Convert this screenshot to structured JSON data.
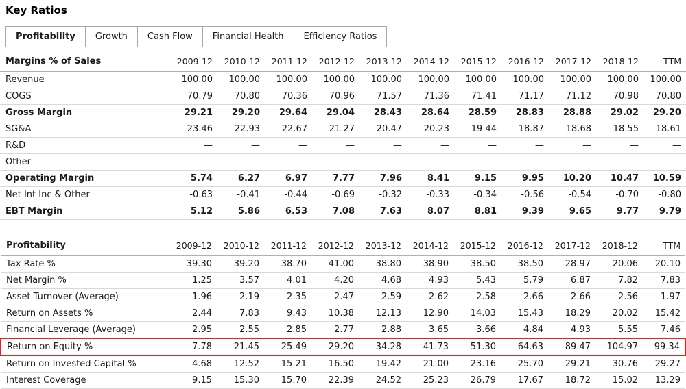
{
  "page": {
    "title": "Key Ratios"
  },
  "tabs": [
    {
      "label": "Profitability",
      "active": true
    },
    {
      "label": "Growth",
      "active": false
    },
    {
      "label": "Cash Flow",
      "active": false
    },
    {
      "label": "Financial Health",
      "active": false
    },
    {
      "label": "Efficiency Ratios",
      "active": false
    }
  ],
  "columns": [
    "2009-12",
    "2010-12",
    "2011-12",
    "2012-12",
    "2013-12",
    "2014-12",
    "2015-12",
    "2016-12",
    "2017-12",
    "2018-12",
    "TTM"
  ],
  "tables": [
    {
      "id": "margins",
      "header": "Margins % of Sales",
      "rows": [
        {
          "label": "Revenue",
          "bold": false,
          "highlight": false,
          "values": [
            "100.00",
            "100.00",
            "100.00",
            "100.00",
            "100.00",
            "100.00",
            "100.00",
            "100.00",
            "100.00",
            "100.00",
            "100.00"
          ]
        },
        {
          "label": "COGS",
          "bold": false,
          "highlight": false,
          "values": [
            "70.79",
            "70.80",
            "70.36",
            "70.96",
            "71.57",
            "71.36",
            "71.41",
            "71.17",
            "71.12",
            "70.98",
            "70.80"
          ]
        },
        {
          "label": "Gross Margin",
          "bold": true,
          "highlight": false,
          "values": [
            "29.21",
            "29.20",
            "29.64",
            "29.04",
            "28.43",
            "28.64",
            "28.59",
            "28.83",
            "28.88",
            "29.02",
            "29.20"
          ]
        },
        {
          "label": "SG&A",
          "bold": false,
          "highlight": false,
          "values": [
            "23.46",
            "22.93",
            "22.67",
            "21.27",
            "20.47",
            "20.23",
            "19.44",
            "18.87",
            "18.68",
            "18.55",
            "18.61"
          ]
        },
        {
          "label": "R&D",
          "bold": false,
          "highlight": false,
          "values": [
            "—",
            "—",
            "—",
            "—",
            "—",
            "—",
            "—",
            "—",
            "—",
            "—",
            "—"
          ]
        },
        {
          "label": "Other",
          "bold": false,
          "highlight": false,
          "values": [
            "—",
            "—",
            "—",
            "—",
            "—",
            "—",
            "—",
            "—",
            "—",
            "—",
            "—"
          ]
        },
        {
          "label": "Operating Margin",
          "bold": true,
          "highlight": false,
          "values": [
            "5.74",
            "6.27",
            "6.97",
            "7.77",
            "7.96",
            "8.41",
            "9.15",
            "9.95",
            "10.20",
            "10.47",
            "10.59"
          ]
        },
        {
          "label": "Net Int Inc & Other",
          "bold": false,
          "highlight": false,
          "values": [
            "-0.63",
            "-0.41",
            "-0.44",
            "-0.69",
            "-0.32",
            "-0.33",
            "-0.34",
            "-0.56",
            "-0.54",
            "-0.70",
            "-0.80"
          ]
        },
        {
          "label": "EBT Margin",
          "bold": true,
          "highlight": false,
          "values": [
            "5.12",
            "5.86",
            "6.53",
            "7.08",
            "7.63",
            "8.07",
            "8.81",
            "9.39",
            "9.65",
            "9.77",
            "9.79"
          ]
        }
      ]
    },
    {
      "id": "profitability",
      "header": "Profitability",
      "rows": [
        {
          "label": "Tax Rate %",
          "bold": false,
          "highlight": false,
          "values": [
            "39.30",
            "39.20",
            "38.70",
            "41.00",
            "38.80",
            "38.90",
            "38.50",
            "38.50",
            "28.97",
            "20.06",
            "20.10"
          ]
        },
        {
          "label": "Net Margin %",
          "bold": false,
          "highlight": false,
          "values": [
            "1.25",
            "3.57",
            "4.01",
            "4.20",
            "4.68",
            "4.93",
            "5.43",
            "5.79",
            "6.87",
            "7.82",
            "7.83"
          ]
        },
        {
          "label": "Asset Turnover (Average)",
          "bold": false,
          "highlight": false,
          "values": [
            "1.96",
            "2.19",
            "2.35",
            "2.47",
            "2.59",
            "2.62",
            "2.58",
            "2.66",
            "2.66",
            "2.56",
            "1.97"
          ]
        },
        {
          "label": "Return on Assets %",
          "bold": false,
          "highlight": false,
          "values": [
            "2.44",
            "7.83",
            "9.43",
            "10.38",
            "12.13",
            "12.90",
            "14.03",
            "15.43",
            "18.29",
            "20.02",
            "15.42"
          ]
        },
        {
          "label": "Financial Leverage (Average)",
          "bold": false,
          "highlight": false,
          "values": [
            "2.95",
            "2.55",
            "2.85",
            "2.77",
            "2.88",
            "3.65",
            "3.66",
            "4.84",
            "4.93",
            "5.55",
            "7.46"
          ]
        },
        {
          "label": "Return on Equity %",
          "bold": false,
          "highlight": true,
          "values": [
            "7.78",
            "21.45",
            "25.49",
            "29.20",
            "34.28",
            "41.73",
            "51.30",
            "64.63",
            "89.47",
            "104.97",
            "99.34"
          ]
        },
        {
          "label": "Return on Invested Capital %",
          "bold": false,
          "highlight": false,
          "values": [
            "4.68",
            "12.52",
            "15.21",
            "16.50",
            "19.42",
            "21.00",
            "23.16",
            "25.70",
            "29.21",
            "30.76",
            "29.27"
          ]
        },
        {
          "label": "Interest Coverage",
          "bold": false,
          "highlight": false,
          "values": [
            "9.15",
            "15.30",
            "15.70",
            "22.39",
            "24.52",
            "25.23",
            "26.79",
            "17.67",
            "18.72",
            "15.02",
            "13.29"
          ]
        }
      ]
    }
  ],
  "colors": {
    "highlight_border": "#e4251f",
    "header_rule": "#b0b0b0",
    "row_rule": "#d9d9d9",
    "tab_border": "#a9a9a9",
    "text": "#1a1a1a"
  }
}
